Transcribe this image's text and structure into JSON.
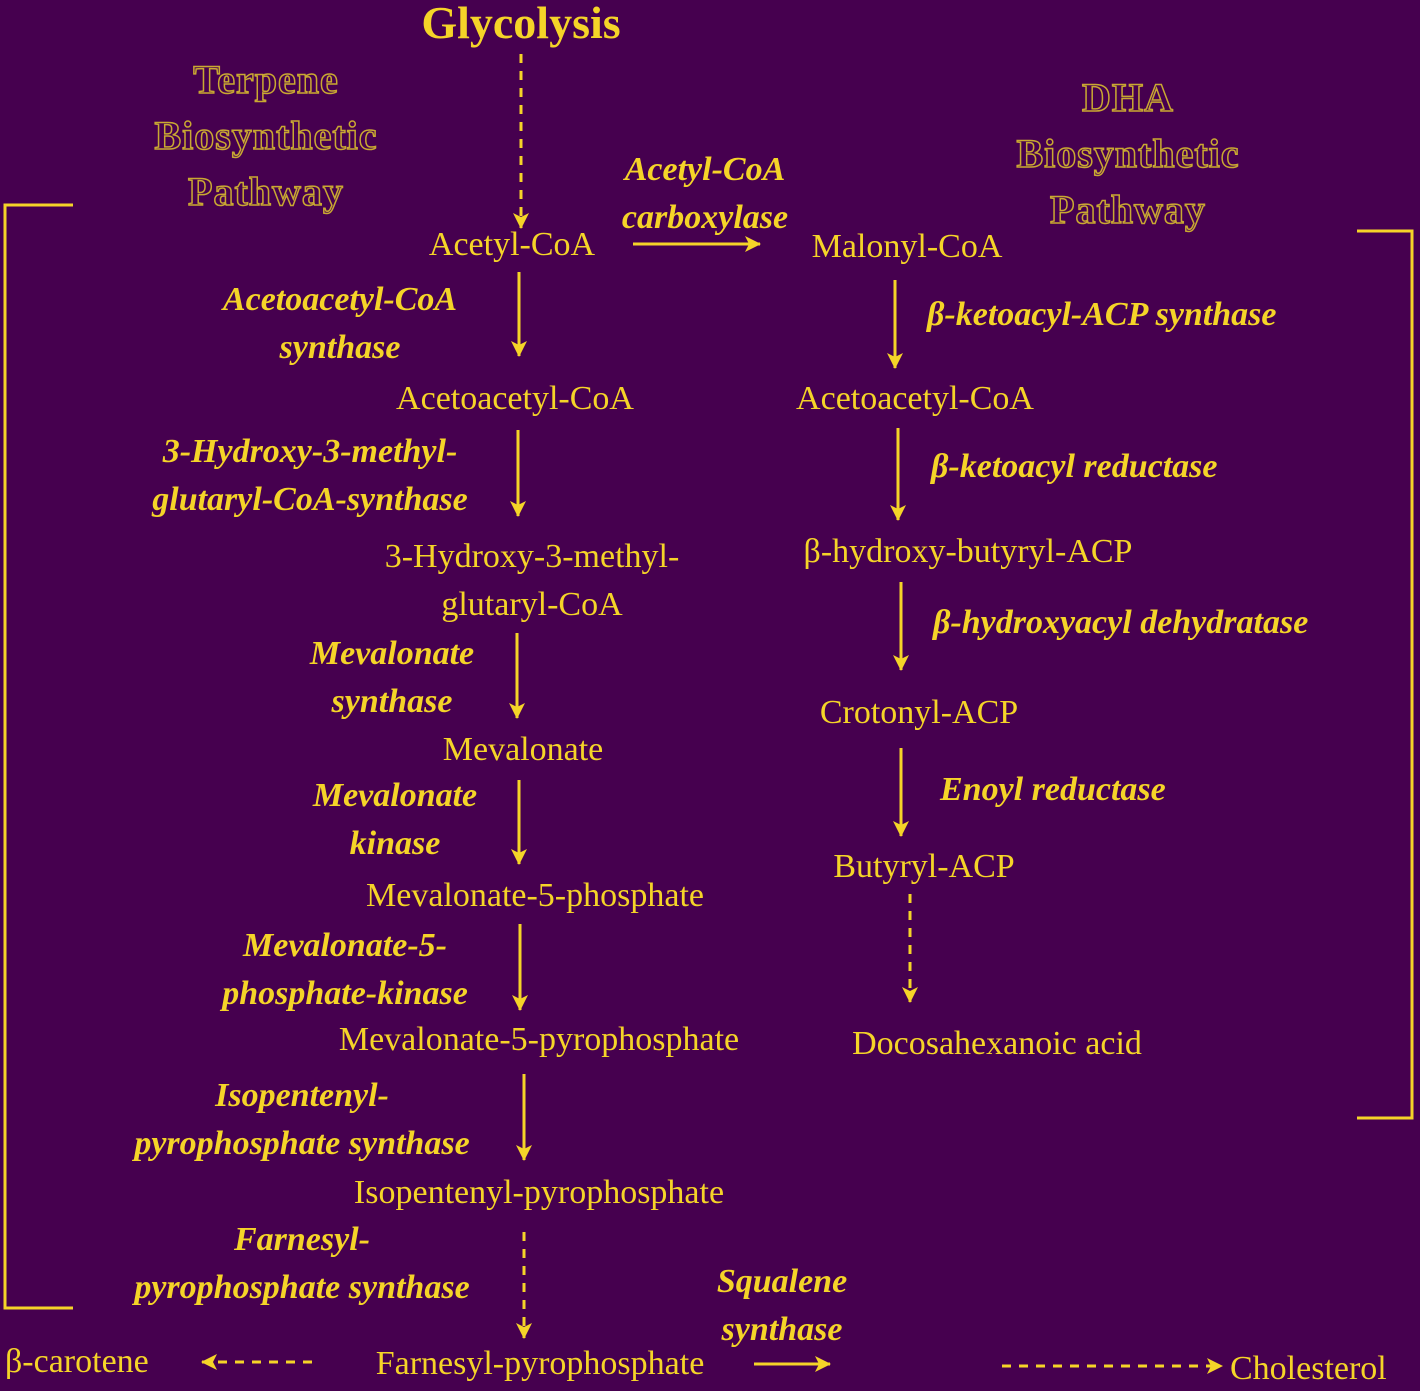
{
  "title": "Glycolysis",
  "terpene_header": "Terpene\nBiosynthetic\nPathway",
  "dha_header": "DHA\nBiosynthetic\nPathway",
  "terpene": {
    "metabolites": {
      "acetyl_coa": "Acetyl-CoA",
      "acetoacetyl_coa": "Acetoacetyl-CoA",
      "hmg_coa": "3-Hydroxy-3-methyl-\nglutaryl-CoA",
      "mevalonate": "Mevalonate",
      "mevalonate_5_phosphate": "Mevalonate-5-phosphate",
      "mevalonate_5_pyrophosphate": "Mevalonate-5-pyrophosphate",
      "isopentenyl_pyrophosphate": "Isopentenyl-pyrophosphate",
      "farnesyl_pyrophosphate": "Farnesyl-pyrophosphate"
    },
    "enzymes": {
      "acetoacetyl_coa_synthase": "Acetoacetyl-CoA\nsynthase",
      "hmg_coa_synthase": "3-Hydroxy-3-methyl-\nglutaryl-CoA-synthase",
      "mevalonate_synthase": "Mevalonate\nsynthase",
      "mevalonate_kinase": "Mevalonate\nkinase",
      "mevalonate_5_phosphate_kinase": "Mevalonate-5-\nphosphate-kinase",
      "ipp_synthase": "Isopentenyl-\npyrophosphate synthase",
      "fpp_synthase": "Farnesyl-\npyrophosphate synthase"
    }
  },
  "dha": {
    "metabolites": {
      "malonyl_coa": "Malonyl-CoA",
      "acetoacetyl_coa": "Acetoacetyl-CoA",
      "hydroxy_butyryl_acp": "β-hydroxy-butyryl-ACP",
      "crotonyl_acp": "Crotonyl-ACP",
      "butyryl_acp": "Butyryl-ACP",
      "docosahexanoic_acid": "Docosahexanoic acid"
    },
    "enzymes": {
      "acetyl_coa_carboxylase": "Acetyl-CoA\ncarboxylase",
      "ketoacyl_acp_synthase": "β-ketoacyl-ACP synthase",
      "ketoacyl_reductase": "β-ketoacyl reductase",
      "hydroxyacyl_dehydratase": "β-hydroxyacyl dehydratase",
      "enoyl_reductase": "Enoyl reductase"
    }
  },
  "products": {
    "beta_carotene": "β-carotene",
    "cholesterol": "Cholesterol",
    "squalene_synthase": "Squalene\nsynthase"
  },
  "colors": {
    "background": "#46004f",
    "foreground": "#f5d428",
    "header_outline": "#c9a832"
  }
}
